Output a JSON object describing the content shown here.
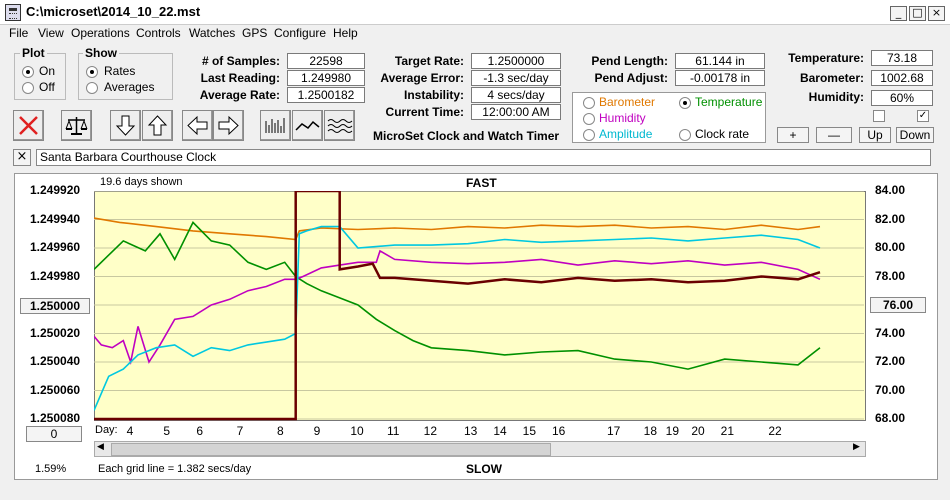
{
  "window": {
    "title": "C:\\microset\\2014_10_22.mst",
    "min_label": "_",
    "max_label": "□",
    "close_label": "×"
  },
  "menu": [
    {
      "label": "File"
    },
    {
      "label": "View"
    },
    {
      "label": "Operations"
    },
    {
      "label": "Controls"
    },
    {
      "label": "Watches"
    },
    {
      "label": "GPS"
    },
    {
      "label": "Configure"
    },
    {
      "label": "Help"
    }
  ],
  "plot_group": {
    "legend": "Plot",
    "on": "On",
    "off": "Off",
    "selected": "On"
  },
  "show_group": {
    "legend": "Show",
    "rates": "Rates",
    "averages": "Averages",
    "selected": "Rates"
  },
  "stats": {
    "samples_label": "# of Samples:",
    "samples": "22598",
    "last_label": "Last Reading:",
    "last": "1.249980",
    "avg_label": "Average Rate:",
    "avg": "1.2500182"
  },
  "rates": {
    "target_label": "Target Rate:",
    "target": "1.2500000",
    "error_label": "Average Error:",
    "error": "-1.3 sec/day",
    "instab_label": "Instability:",
    "instab": "4 secs/day",
    "time_label": "Current Time:",
    "time": "12:00:00 AM"
  },
  "heading": "MicroSet Clock and Watch Timer",
  "pend": {
    "length_label": "Pend Length:",
    "length": "61.144 in",
    "adjust_label": "Pend Adjust:",
    "adjust": "-0.00178 in"
  },
  "sensors": {
    "barometer": "Barometer",
    "temperature": "Temperature",
    "humidity": "Humidity",
    "amplitude": "Amplitude",
    "clockrate": "Clock rate",
    "selected": "Temperature",
    "colors": {
      "barometer": "#e07800",
      "temperature": "#009000",
      "humidity": "#c000c0",
      "amplitude": "#00b8d0",
      "clockrate": "#000000"
    }
  },
  "env": {
    "temp_label": "Temperature:",
    "temp": "73.18",
    "baro_label": "Barometer:",
    "baro": "1002.68",
    "hum_label": "Humidity:",
    "hum": "60%"
  },
  "adjust_buttons": {
    "plus": "+",
    "minus": "—",
    "up": "Up",
    "down": "Down"
  },
  "description": "Santa Barbara Courthouse Clock",
  "close_x": "×",
  "chart_header": {
    "days_shown": "19.6 days shown",
    "fast": "FAST",
    "slow": "SLOW",
    "grid_note": "Each grid line = 1.382 secs/day",
    "percent": "1.59%",
    "day_label": "Day:"
  },
  "center_box": "1.250000",
  "right_box": "76.00",
  "zero_box": "0",
  "chart_data": {
    "type": "line",
    "y_left": {
      "ticks": [
        "1.249920",
        "1.249940",
        "1.249960",
        "1.249980",
        "1.250000",
        "1.250020",
        "1.250040",
        "1.250060",
        "1.250080"
      ],
      "range": [
        1.24992,
        1.25008
      ],
      "inverted": true
    },
    "y_right": {
      "ticks": [
        "84.00",
        "82.00",
        "80.00",
        "78.00",
        "76.00",
        "74.00",
        "72.00",
        "70.00",
        "68.00"
      ],
      "range": [
        68,
        84
      ]
    },
    "x_ticks": [
      "4",
      "5",
      "6",
      "7",
      "8",
      "9",
      "10",
      "11",
      "12",
      "13",
      "14",
      "15",
      "16",
      "17",
      "18",
      "19",
      "20",
      "21",
      "22"
    ],
    "x_tick_positions": [
      3.8,
      4.8,
      5.7,
      6.8,
      7.9,
      8.9,
      9.9,
      10.9,
      11.9,
      13.0,
      13.8,
      14.6,
      15.4,
      16.9,
      17.9,
      18.5,
      19.2,
      20.0,
      21.3
    ],
    "x_range": [
      2.8,
      23.8
    ],
    "series": [
      {
        "color": "#e07800",
        "axis": "right",
        "x": [
          2.8,
          3.5,
          4.5,
          5.5,
          6.5,
          7.5,
          8.3,
          8.4,
          9.0,
          10.0,
          11.0,
          12.0,
          13.0,
          14.0,
          15.0,
          16.0,
          17.0,
          18.0,
          19.0,
          20.0,
          21.0,
          22.0,
          22.6
        ],
        "y": [
          82.1,
          81.8,
          81.5,
          81.2,
          81.0,
          80.8,
          80.6,
          81.2,
          81.4,
          81.3,
          81.4,
          81.3,
          81.5,
          81.4,
          81.6,
          81.5,
          81.6,
          81.4,
          81.5,
          81.3,
          81.6,
          81.3,
          81.5
        ]
      },
      {
        "color": "#009000",
        "axis": "right",
        "x": [
          2.8,
          3.2,
          3.6,
          4.2,
          4.6,
          5.0,
          5.5,
          6.0,
          6.5,
          7.0,
          7.5,
          8.0,
          8.3,
          8.6,
          9.0,
          9.5,
          10.0,
          10.5,
          11.0,
          11.5,
          12.0,
          13.0,
          14.0,
          15.0,
          16.0,
          17.0,
          18.0,
          19.0,
          20.0,
          21.0,
          22.0,
          22.6
        ],
        "y": [
          78.5,
          79.5,
          80.5,
          79.8,
          81.0,
          79.2,
          81.8,
          80.5,
          80.2,
          79.0,
          78.5,
          79.0,
          78.0,
          77.5,
          77.0,
          76.5,
          76.0,
          75.0,
          74.2,
          73.5,
          73.0,
          72.8,
          72.5,
          72.7,
          72.8,
          72.2,
          72.0,
          71.5,
          72.2,
          72.0,
          71.8,
          73.0
        ]
      },
      {
        "color": "#c000c0",
        "axis": "left",
        "x": [
          2.8,
          3.0,
          3.3,
          3.6,
          3.8,
          4.0,
          4.3,
          4.6,
          5.0,
          5.5,
          6.0,
          6.5,
          7.0,
          7.5,
          8.0,
          8.3,
          8.5,
          9.0,
          9.5,
          10.0,
          10.5,
          10.6,
          11.0,
          12.0,
          13.0,
          14.0,
          15.0,
          16.0,
          17.0,
          18.0,
          19.0,
          20.0,
          21.0,
          22.0,
          22.6
        ],
        "y": [
          1.250022,
          1.250028,
          1.25003,
          1.250025,
          1.25004,
          1.250015,
          1.25004,
          1.250028,
          1.25001,
          1.250008,
          1.25,
          1.249996,
          1.24999,
          1.249987,
          1.249982,
          1.249982,
          1.24998,
          1.249974,
          1.249972,
          1.24997,
          1.24997,
          1.249962,
          1.249968,
          1.24997,
          1.249971,
          1.24997,
          1.249968,
          1.249972,
          1.249969,
          1.249971,
          1.249969,
          1.249972,
          1.24997,
          1.249975,
          1.249982
        ]
      },
      {
        "color": "#00c8e0",
        "axis": "left",
        "x": [
          2.8,
          3.2,
          3.6,
          4.0,
          4.5,
          5.0,
          5.5,
          6.0,
          6.5,
          7.0,
          7.5,
          8.0,
          8.3,
          8.4,
          8.6,
          9.0,
          9.5,
          10.0,
          11.0,
          12.0,
          13.0,
          14.0,
          15.0,
          16.0,
          17.0,
          18.0,
          19.0,
          20.0,
          21.0,
          22.0,
          22.6
        ],
        "y": [
          1.250074,
          1.25005,
          1.250045,
          1.250035,
          1.25003,
          1.250028,
          1.250036,
          1.25003,
          1.250032,
          1.250028,
          1.250026,
          1.250024,
          1.25002,
          1.24995,
          1.249948,
          1.249945,
          1.249945,
          1.24996,
          1.249958,
          1.249958,
          1.249957,
          1.249954,
          1.249956,
          1.249955,
          1.249954,
          1.249953,
          1.249955,
          1.249953,
          1.249951,
          1.249954,
          1.24996
        ]
      },
      {
        "color": "#6a0000",
        "axis": "left",
        "x": [
          2.8,
          8.3,
          8.3,
          9.5,
          9.5,
          10.0,
          10.4,
          10.6,
          11.0,
          12.0,
          13.0,
          14.0,
          15.0,
          16.0,
          17.0,
          18.0,
          19.0,
          20.0,
          21.0,
          22.0,
          22.6
        ],
        "y": [
          1.25008,
          1.25008,
          1.24992,
          1.24992,
          1.249975,
          1.249973,
          1.249971,
          1.249981,
          1.249981,
          1.249983,
          1.249985,
          1.249982,
          1.249984,
          1.249981,
          1.249983,
          1.249982,
          1.249984,
          1.249983,
          1.24998,
          1.249982,
          1.249977
        ]
      }
    ]
  }
}
